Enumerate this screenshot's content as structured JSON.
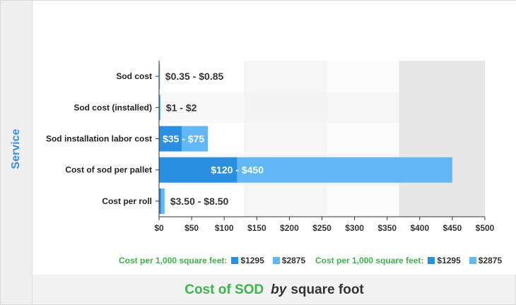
{
  "chart_data": {
    "type": "bar",
    "orientation": "horizontal",
    "stacked": true,
    "axis_title": "Service",
    "categories": [
      "Sod cost",
      "Sod cost (installed)",
      "Sod installation labor cost",
      "Cost of sod per pallet",
      "Cost per roll"
    ],
    "series": [
      {
        "name": "$1295",
        "color": "#2b8fe0",
        "values": [
          0.35,
          1,
          35,
          120,
          3.5
        ]
      },
      {
        "name": "$2875",
        "color": "#62b8f7",
        "values": [
          0.5,
          1,
          40,
          330,
          5
        ]
      }
    ],
    "bar_labels": [
      [
        "$0.35",
        "$0.85"
      ],
      [
        "$1",
        "$2"
      ],
      [
        "$35",
        "$75"
      ],
      [
        "$120",
        "$450"
      ],
      [
        "$3.50",
        "$8.50"
      ]
    ],
    "xticks": [
      "$0",
      "$50",
      "$100",
      "$150",
      "$200",
      "$250",
      "$300",
      "$350",
      "$400",
      "$450",
      "$500"
    ],
    "xlim": [
      0,
      500
    ],
    "grid": false
  },
  "legend": {
    "title": "Cost per 1,000 square feet:",
    "items": [
      {
        "label": "$1295",
        "color": "#2b8fe0"
      },
      {
        "label": "$2875",
        "color": "#62b8f7"
      }
    ]
  },
  "footer": {
    "title_part1": "Cost of SOD",
    "title_part2": "by",
    "title_part3": "square foot"
  }
}
